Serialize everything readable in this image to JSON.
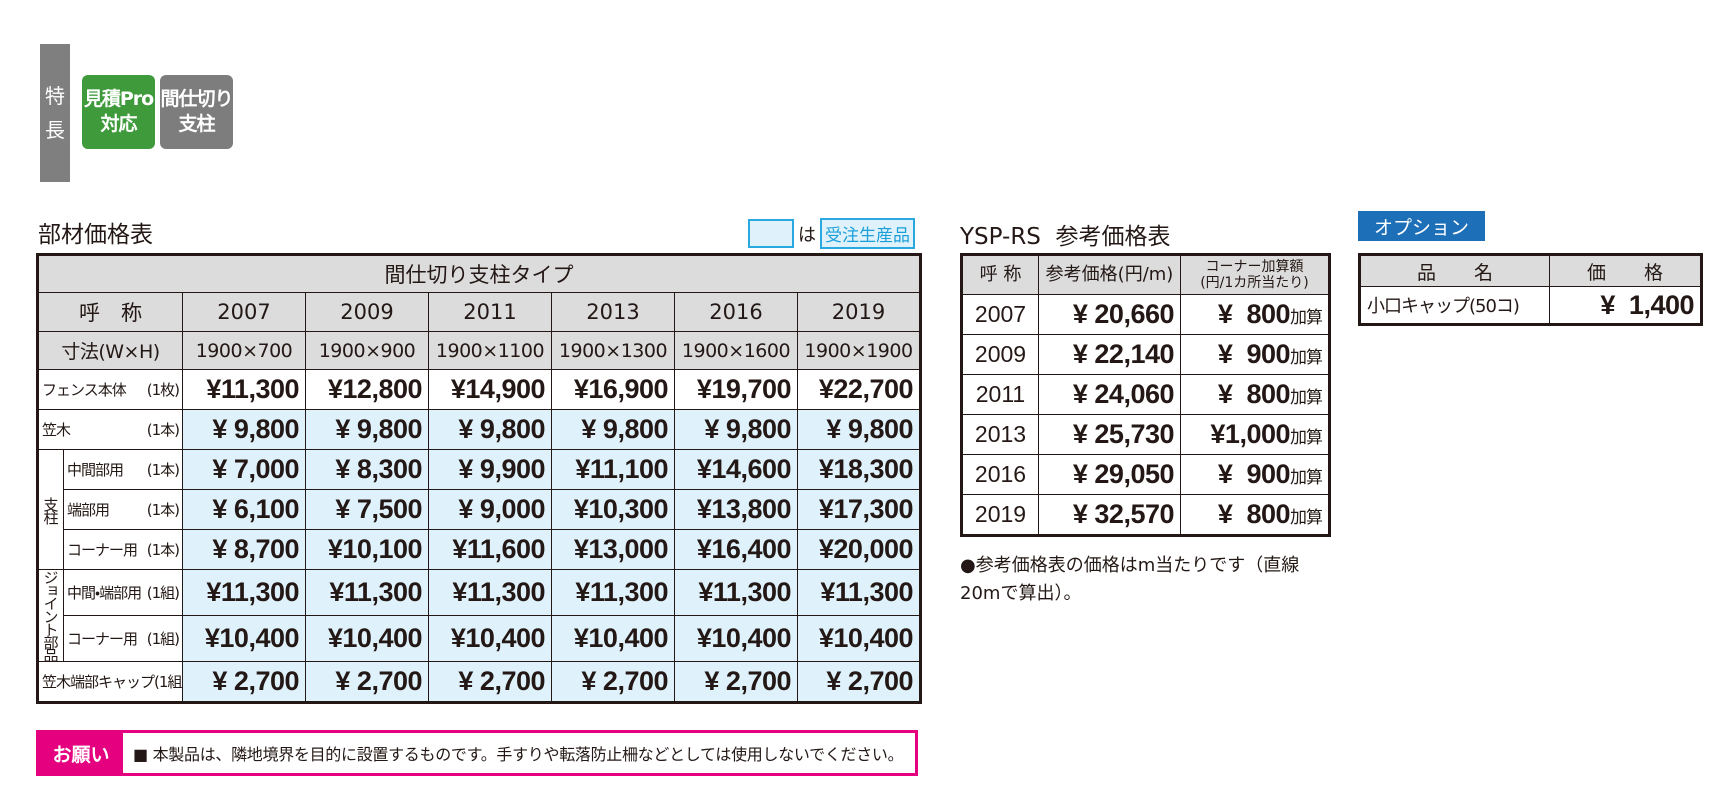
{
  "features": {
    "label": [
      "特",
      "長"
    ],
    "badges": [
      {
        "lines": [
          "見積Pro",
          "対応"
        ],
        "color": "#3e9a3a"
      },
      {
        "lines": [
          "間仕切り",
          "支柱"
        ],
        "color": "#7d7d7d"
      }
    ]
  },
  "parts_table": {
    "title": "部材価格表",
    "legend": {
      "note": "は",
      "label": "受注生産品"
    },
    "header": "間仕切り支柱タイプ",
    "name_label": "呼　称",
    "size_label": "寸法(W×H)",
    "columns": [
      {
        "name": "2007",
        "size": "1900×700"
      },
      {
        "name": "2009",
        "size": "1900×900"
      },
      {
        "name": "2011",
        "size": "1900×1100"
      },
      {
        "name": "2013",
        "size": "1900×1300"
      },
      {
        "name": "2016",
        "size": "1900×1600"
      },
      {
        "name": "2019",
        "size": "1900×1900"
      }
    ],
    "body": [
      {
        "label": "フェンス本体",
        "unit": "(1枚)",
        "made_to_order": false,
        "prices": [
          "¥11,300",
          "¥12,800",
          "¥14,900",
          "¥16,900",
          "¥19,700",
          "¥22,700"
        ]
      },
      {
        "label": "笠木",
        "unit": "(1本)",
        "made_to_order": true,
        "prices": [
          "¥ 9,800",
          "¥ 9,800",
          "¥ 9,800",
          "¥ 9,800",
          "¥ 9,800",
          "¥ 9,800"
        ]
      },
      {
        "group": "支柱",
        "rows": [
          {
            "label": "中間部用",
            "unit": "(1本)",
            "made_to_order": true,
            "prices": [
              "¥ 7,000",
              "¥ 8,300",
              "¥ 9,900",
              "¥11,100",
              "¥14,600",
              "¥18,300"
            ]
          },
          {
            "label": "端部用",
            "unit": "(1本)",
            "made_to_order": true,
            "prices": [
              "¥ 6,100",
              "¥ 7,500",
              "¥ 9,000",
              "¥10,300",
              "¥13,800",
              "¥17,300"
            ]
          },
          {
            "label": "コーナー用",
            "unit": "(1本)",
            "made_to_order": true,
            "prices": [
              "¥ 8,700",
              "¥10,100",
              "¥11,600",
              "¥13,000",
              "¥16,400",
              "¥20,000"
            ]
          }
        ]
      },
      {
        "group": "ジョイント部品",
        "rows": [
          {
            "label": "中間・端部用",
            "unit": "(1組)",
            "made_to_order": true,
            "prices": [
              "¥11,300",
              "¥11,300",
              "¥11,300",
              "¥11,300",
              "¥11,300",
              "¥11,300"
            ]
          },
          {
            "label": "コーナー用",
            "unit": "(1組)",
            "made_to_order": true,
            "prices": [
              "¥10,400",
              "¥10,400",
              "¥10,400",
              "¥10,400",
              "¥10,400",
              "¥10,400"
            ]
          }
        ]
      },
      {
        "label": "笠木端部キャップ",
        "unit": "(1組)",
        "made_to_order": true,
        "prices": [
          "¥ 2,700",
          "¥ 2,700",
          "¥ 2,700",
          "¥ 2,700",
          "¥ 2,700",
          "¥ 2,700"
        ]
      }
    ]
  },
  "reference_table": {
    "title": "YSP-RS  参考価格表",
    "headers": [
      [
        "呼 称"
      ],
      [
        "参考価格(円/m)"
      ],
      [
        "コーナー加算額",
        "(円/1カ所当たり)"
      ]
    ],
    "rows": [
      {
        "name": "2007",
        "price": "¥ 20,660",
        "corner": "¥  800",
        "suffix": "加算"
      },
      {
        "name": "2009",
        "price": "¥ 22,140",
        "corner": "¥  900",
        "suffix": "加算"
      },
      {
        "name": "2011",
        "price": "¥ 24,060",
        "corner": "¥  800",
        "suffix": "加算"
      },
      {
        "name": "2013",
        "price": "¥ 25,730",
        "corner": "¥1,000",
        "suffix": "加算"
      },
      {
        "name": "2016",
        "price": "¥ 29,050",
        "corner": "¥  900",
        "suffix": "加算"
      },
      {
        "name": "2019",
        "price": "¥ 32,570",
        "corner": "¥  800",
        "suffix": "加算"
      }
    ],
    "note": "●参考価格表の価格はm当たりです（直線20mで算出）。"
  },
  "option": {
    "label": "オプション",
    "headers": [
      "品　　名",
      "価　　格"
    ],
    "rows": [
      {
        "name": "小口キャップ(50コ)",
        "price": "¥  1,400"
      }
    ]
  },
  "notice": {
    "label": "お願い",
    "text": "■ 本製品は、隣地境界を目的に設置するものです。手すりや転落防止柵などとしては使用しないでください。"
  }
}
